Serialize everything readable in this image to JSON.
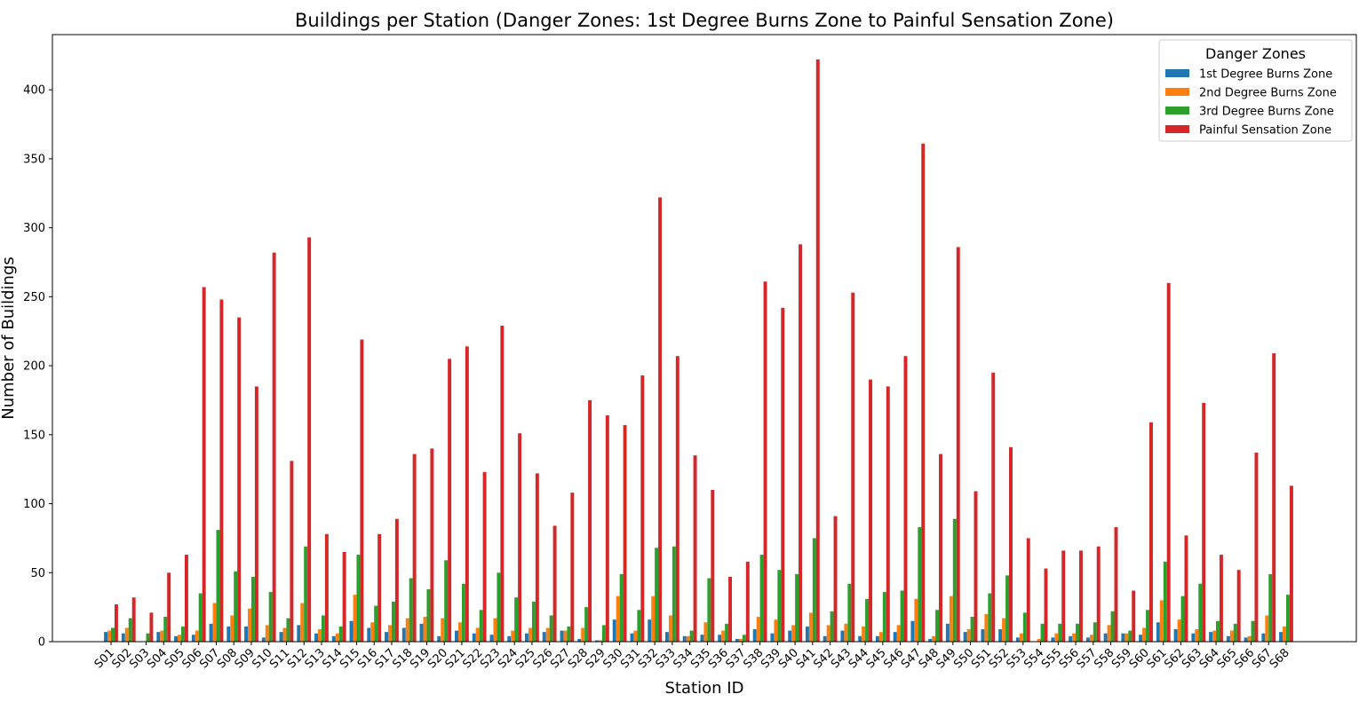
{
  "chart_data": {
    "type": "bar",
    "title": "Buildings per Station (Danger Zones: 1st Degree Burns Zone to Painful Sensation Zone)",
    "xlabel": "Station ID",
    "ylabel": "Number of Buildings",
    "ylim": [
      0,
      440
    ],
    "yticks": [
      0,
      50,
      100,
      150,
      200,
      250,
      300,
      350,
      400
    ],
    "grid": false,
    "legend": {
      "title": "Danger Zones",
      "placement": "top-right"
    },
    "categories": [
      "S01",
      "S02",
      "S03",
      "S04",
      "S05",
      "S06",
      "S07",
      "S08",
      "S09",
      "S10",
      "S11",
      "S12",
      "S13",
      "S14",
      "S15",
      "S16",
      "S17",
      "S18",
      "S19",
      "S20",
      "S21",
      "S22",
      "S23",
      "S24",
      "S25",
      "S26",
      "S27",
      "S28",
      "S29",
      "S30",
      "S31",
      "S32",
      "S33",
      "S34",
      "S35",
      "S36",
      "S37",
      "S38",
      "S39",
      "S40",
      "S41",
      "S42",
      "S43",
      "S44",
      "S45",
      "S46",
      "S47",
      "S48",
      "S49",
      "S50",
      "S51",
      "S52",
      "S53",
      "S54",
      "S55",
      "S56",
      "S57",
      "S58",
      "S59",
      "S60",
      "S61",
      "S62",
      "S63",
      "S64",
      "S65",
      "S66",
      "S67",
      "S68"
    ],
    "series": [
      {
        "name": "1st Degree Burns Zone",
        "color": "#1f77b4",
        "values": [
          7,
          6,
          0,
          7,
          4,
          5,
          13,
          11,
          11,
          3,
          7,
          12,
          6,
          4,
          15,
          10,
          7,
          10,
          13,
          4,
          8,
          6,
          5,
          4,
          6,
          7,
          8,
          2,
          1,
          16,
          6,
          16,
          7,
          4,
          5,
          5,
          2,
          9,
          6,
          8,
          11,
          4,
          8,
          4,
          4,
          7,
          15,
          2,
          13,
          7,
          9,
          9,
          3,
          0,
          3,
          4,
          3,
          6,
          6,
          5,
          14,
          9,
          6,
          7,
          4,
          3,
          6,
          7
        ]
      },
      {
        "name": "2nd Degree Burns Zone",
        "color": "#ff7f0e",
        "values": [
          8,
          10,
          0,
          8,
          5,
          8,
          28,
          19,
          24,
          12,
          10,
          28,
          9,
          6,
          34,
          14,
          12,
          17,
          18,
          17,
          14,
          10,
          17,
          8,
          10,
          10,
          8,
          10,
          1,
          33,
          8,
          33,
          19,
          4,
          14,
          8,
          2,
          18,
          16,
          12,
          21,
          12,
          13,
          11,
          7,
          12,
          31,
          4,
          33,
          9,
          20,
          17,
          6,
          2,
          6,
          6,
          5,
          12,
          6,
          10,
          30,
          16,
          9,
          8,
          8,
          4,
          19,
          11
        ]
      },
      {
        "name": "3rd Degree Burns Zone",
        "color": "#2ca02c",
        "values": [
          10,
          17,
          6,
          18,
          11,
          35,
          81,
          51,
          47,
          36,
          17,
          69,
          19,
          11,
          63,
          26,
          29,
          46,
          38,
          59,
          42,
          23,
          50,
          32,
          29,
          19,
          11,
          25,
          12,
          49,
          23,
          68,
          69,
          8,
          46,
          13,
          5,
          63,
          52,
          49,
          75,
          22,
          42,
          31,
          36,
          37,
          83,
          23,
          89,
          18,
          35,
          48,
          21,
          13,
          13,
          13,
          14,
          22,
          8,
          23,
          58,
          33,
          42,
          15,
          13,
          15,
          49,
          34
        ]
      },
      {
        "name": "Painful Sensation Zone",
        "color": "#d62728",
        "values": [
          27,
          32,
          21,
          50,
          63,
          257,
          248,
          235,
          185,
          282,
          131,
          293,
          78,
          65,
          219,
          78,
          89,
          136,
          140,
          205,
          214,
          123,
          229,
          151,
          122,
          84,
          108,
          175,
          164,
          157,
          193,
          322,
          207,
          135,
          110,
          47,
          58,
          261,
          242,
          288,
          422,
          91,
          253,
          190,
          185,
          207,
          361,
          136,
          286,
          109,
          195,
          141,
          75,
          53,
          66,
          66,
          69,
          83,
          37,
          159,
          260,
          77,
          173,
          63,
          52,
          137,
          209,
          113
        ]
      }
    ]
  }
}
